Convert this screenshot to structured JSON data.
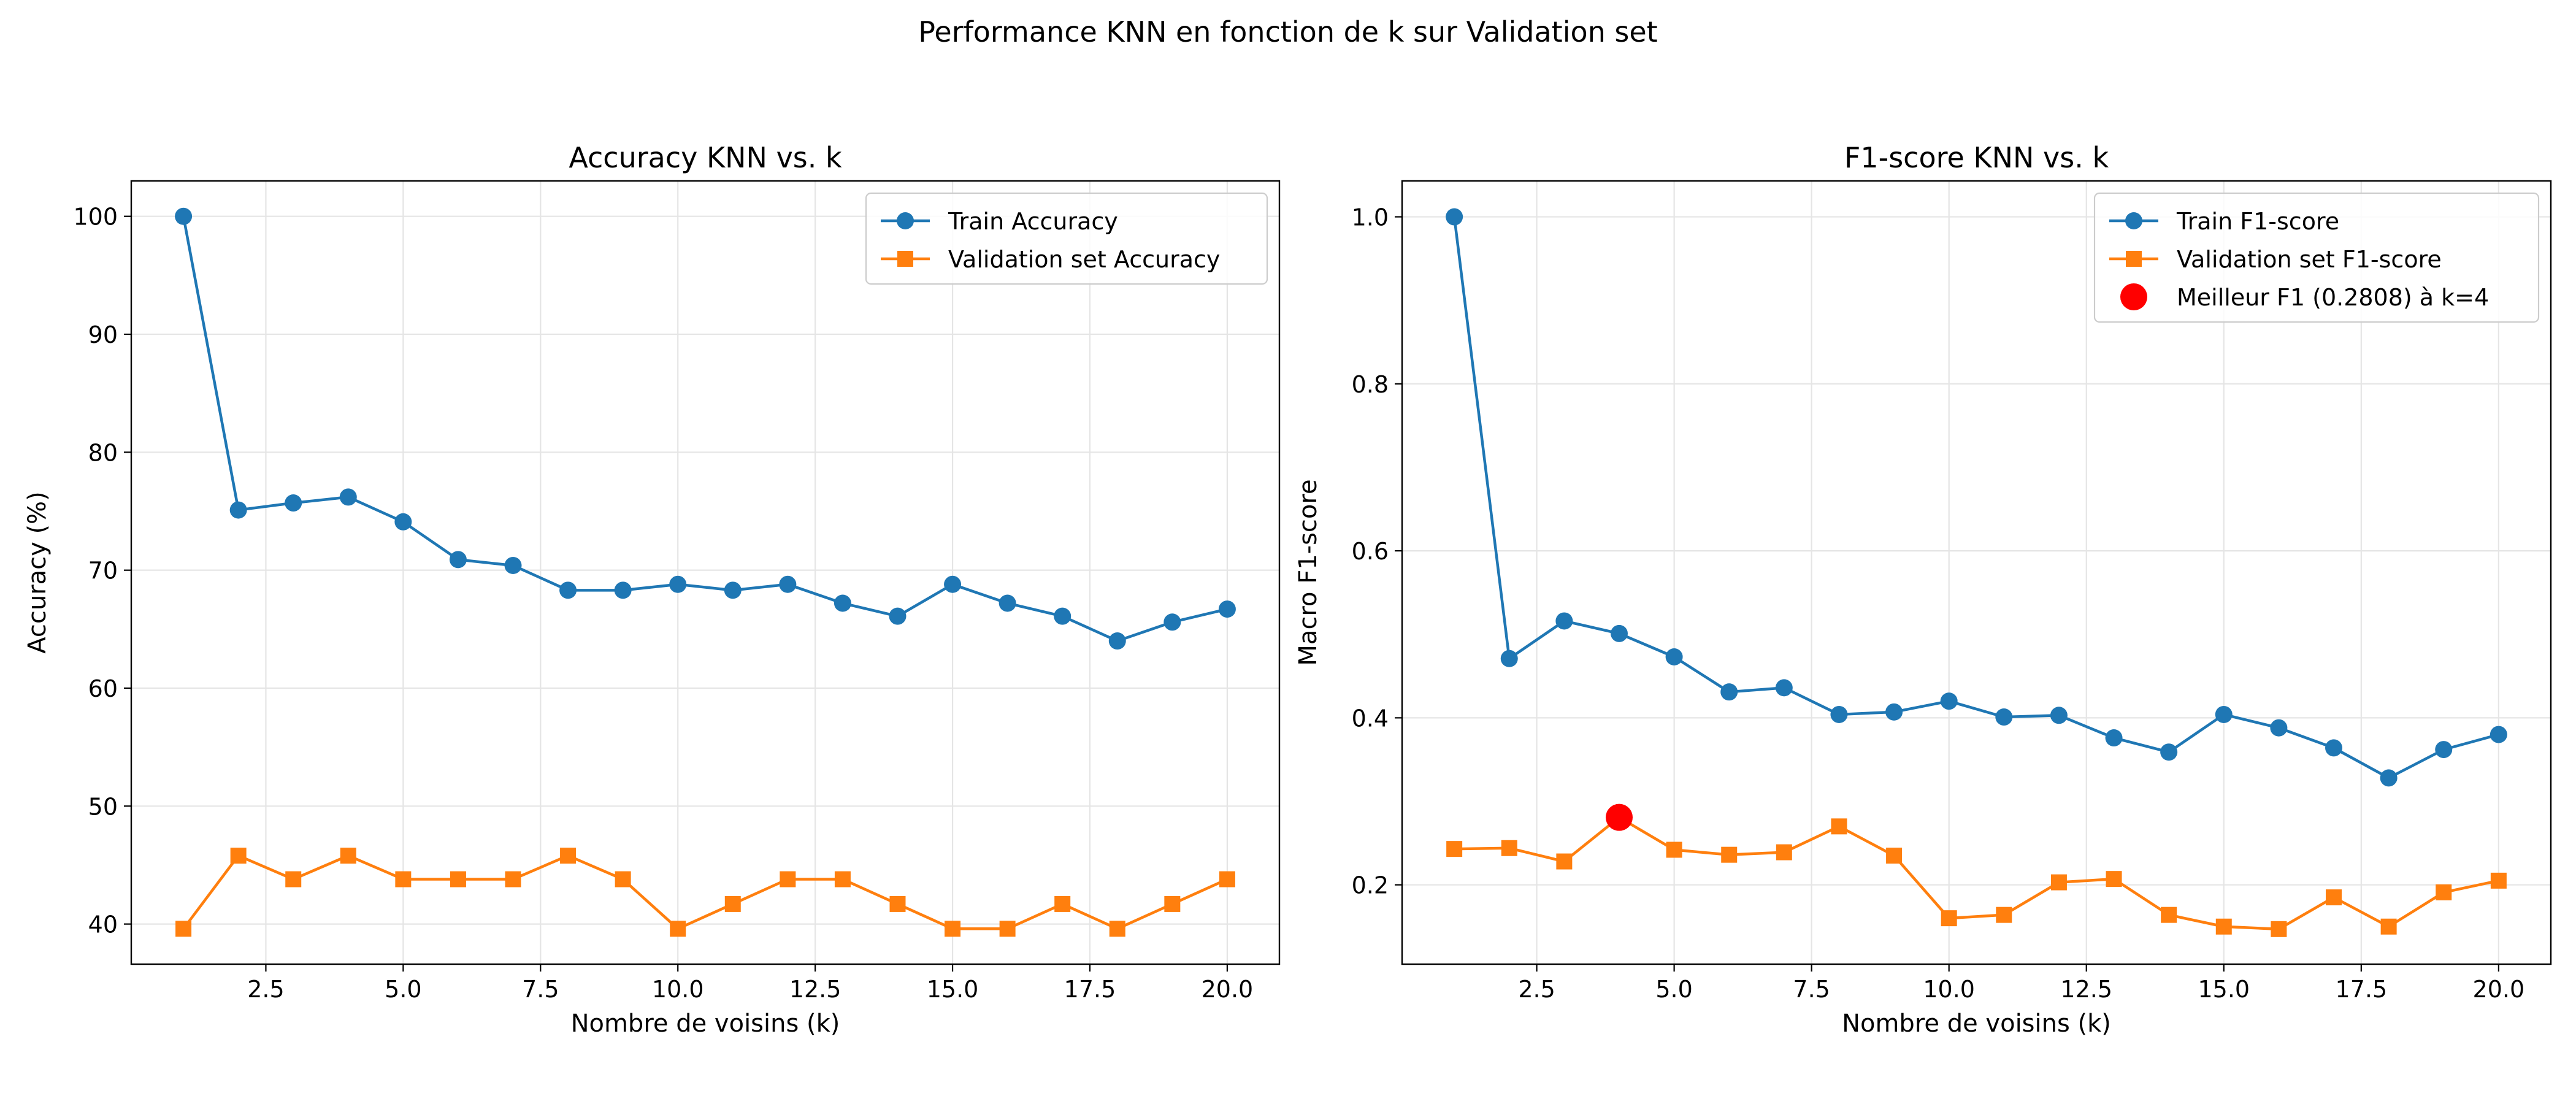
{
  "suptitle": "Performance KNN en fonction de k sur Validation set",
  "colors": {
    "train": "#1f77b4",
    "val": "#ff7f0e",
    "best": "#ff0000",
    "grid": "#e5e5e5",
    "axis": "#000000"
  },
  "chart_data": [
    {
      "type": "line",
      "title": "Accuracy KNN vs. k",
      "xlabel": "Nombre de voisins (k)",
      "ylabel": "Accuracy (%)",
      "xlim": [
        0.05,
        20.95
      ],
      "ylim": [
        36.6,
        103.0
      ],
      "xticks": [
        2.5,
        5.0,
        7.5,
        10.0,
        12.5,
        15.0,
        17.5,
        20.0
      ],
      "xtick_labels": [
        "2.5",
        "5.0",
        "7.5",
        "10.0",
        "12.5",
        "15.0",
        "17.5",
        "20.0"
      ],
      "yticks": [
        40,
        50,
        60,
        70,
        80,
        90,
        100
      ],
      "ytick_labels": [
        "40",
        "50",
        "60",
        "70",
        "80",
        "90",
        "100"
      ],
      "grid": true,
      "legend_position": "top-right",
      "x": [
        1,
        2,
        3,
        4,
        5,
        6,
        7,
        8,
        9,
        10,
        11,
        12,
        13,
        14,
        15,
        16,
        17,
        18,
        19,
        20
      ],
      "series": [
        {
          "name": "Train Accuracy",
          "color": "#1f77b4",
          "marker": "circle",
          "values": [
            100.0,
            75.1,
            75.7,
            76.2,
            74.1,
            70.9,
            70.4,
            68.3,
            68.3,
            68.8,
            68.3,
            68.8,
            67.2,
            66.1,
            68.8,
            67.2,
            66.1,
            64.0,
            65.6,
            66.7
          ]
        },
        {
          "name": "Validation set Accuracy",
          "color": "#ff7f0e",
          "marker": "square",
          "values": [
            39.6,
            45.8,
            43.8,
            45.8,
            43.8,
            43.8,
            43.8,
            45.8,
            43.8,
            39.6,
            41.7,
            43.8,
            43.8,
            41.7,
            39.6,
            39.6,
            41.7,
            39.6,
            41.7,
            43.8
          ]
        }
      ]
    },
    {
      "type": "line",
      "title": "F1-score KNN vs. k",
      "xlabel": "Nombre de voisins (k)",
      "ylabel": "Macro F1-score",
      "xlim": [
        0.05,
        20.95
      ],
      "ylim": [
        0.105,
        1.043
      ],
      "xticks": [
        2.5,
        5.0,
        7.5,
        10.0,
        12.5,
        15.0,
        17.5,
        20.0
      ],
      "xtick_labels": [
        "2.5",
        "5.0",
        "7.5",
        "10.0",
        "12.5",
        "15.0",
        "17.5",
        "20.0"
      ],
      "yticks": [
        0.2,
        0.4,
        0.6,
        0.8,
        1.0
      ],
      "ytick_labels": [
        "0.2",
        "0.4",
        "0.6",
        "0.8",
        "1.0"
      ],
      "grid": true,
      "legend_position": "top-right",
      "x": [
        1,
        2,
        3,
        4,
        5,
        6,
        7,
        8,
        9,
        10,
        11,
        12,
        13,
        14,
        15,
        16,
        17,
        18,
        19,
        20
      ],
      "series": [
        {
          "name": "Train F1-score",
          "color": "#1f77b4",
          "marker": "circle",
          "values": [
            1.0,
            0.471,
            0.516,
            0.501,
            0.473,
            0.431,
            0.436,
            0.404,
            0.407,
            0.42,
            0.401,
            0.403,
            0.376,
            0.359,
            0.404,
            0.388,
            0.364,
            0.328,
            0.362,
            0.38
          ]
        },
        {
          "name": "Validation set F1-score",
          "color": "#ff7f0e",
          "marker": "square",
          "values": [
            0.243,
            0.244,
            0.228,
            0.2808,
            0.242,
            0.236,
            0.239,
            0.27,
            0.235,
            0.16,
            0.164,
            0.203,
            0.207,
            0.164,
            0.15,
            0.147,
            0.185,
            0.15,
            0.191,
            0.205
          ]
        }
      ],
      "highlight": {
        "name": "Meilleur F1 (0.2808) à k=4",
        "x": 4,
        "y": 0.2808,
        "color": "#ff0000"
      }
    }
  ]
}
